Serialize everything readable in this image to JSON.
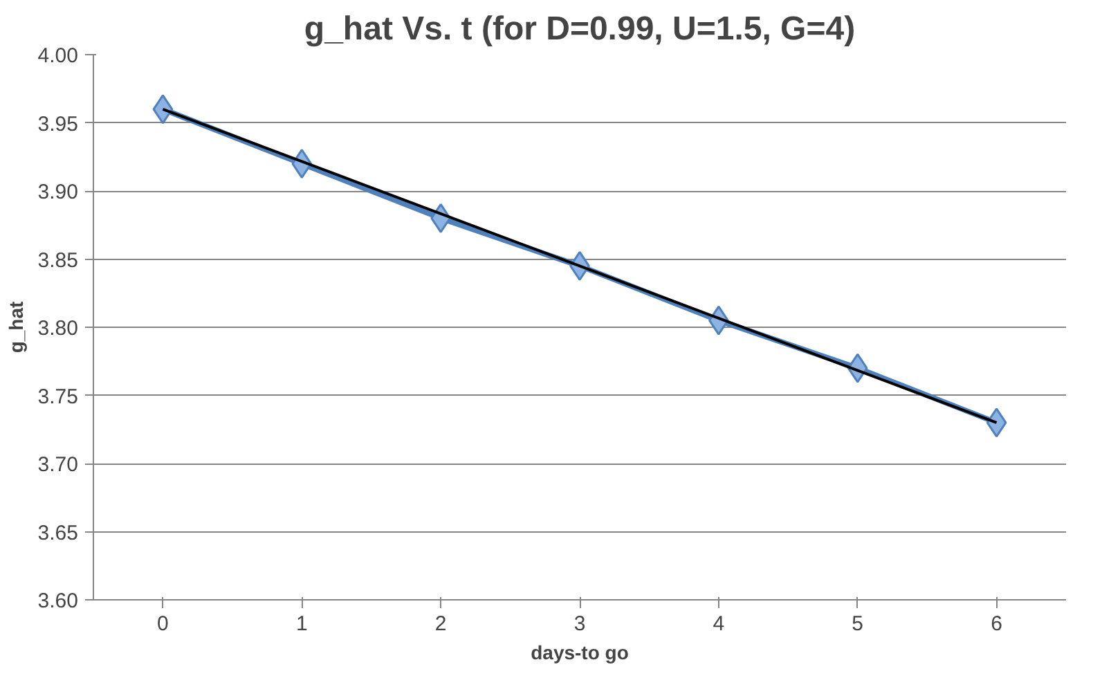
{
  "chart_data": {
    "type": "line",
    "title": "g_hat Vs. t (for D=0.99, U=1.5, G=4)",
    "xlabel": "days-to go",
    "ylabel": "g_hat",
    "x": [
      0,
      1,
      2,
      3,
      4,
      5,
      6
    ],
    "series": [
      {
        "color": "#4f81bd",
        "values": [
          3.96,
          3.92,
          3.88,
          3.845,
          3.805,
          3.77,
          3.73
        ],
        "marker": "diamond"
      },
      {
        "type": "line",
        "color": "#000000",
        "x": [
          0,
          6
        ],
        "values": [
          3.96,
          3.73
        ],
        "marker": "none"
      }
    ],
    "xlim": [
      -0.5,
      6.5
    ],
    "xticks": [
      0,
      1,
      2,
      3,
      4,
      5,
      6
    ],
    "ylim": [
      3.6,
      4.0
    ],
    "yticks": [
      {
        "value": 3.6,
        "label": "3.60"
      },
      {
        "value": 3.65,
        "label": "3.65"
      },
      {
        "value": 3.7,
        "label": "3.70"
      },
      {
        "value": 3.75,
        "label": "3.75"
      },
      {
        "value": 3.8,
        "label": "3.80"
      },
      {
        "value": 3.85,
        "label": "3.85"
      },
      {
        "value": 3.9,
        "label": "3.90"
      },
      {
        "value": 3.95,
        "label": "3.95"
      },
      {
        "value": 4.0,
        "label": "4.00"
      }
    ],
    "grid": "y",
    "line_style": "solid"
  }
}
